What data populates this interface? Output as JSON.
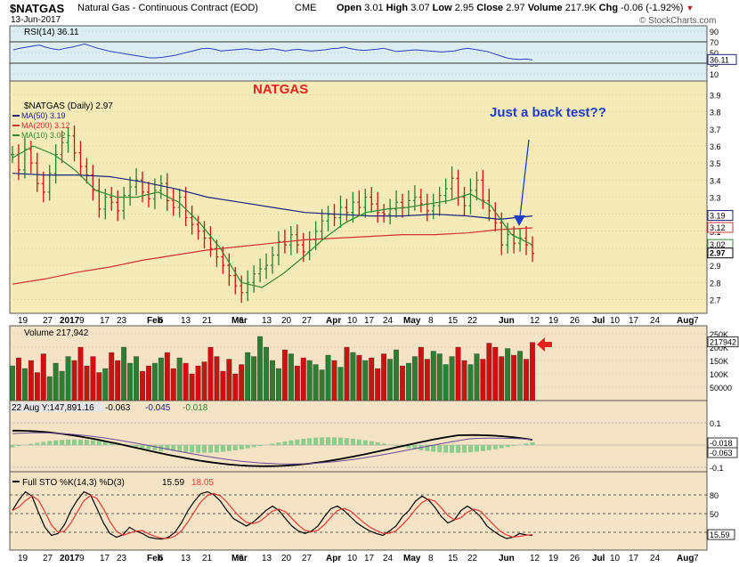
{
  "header": {
    "symbol": "$NATGAS",
    "name": "Natural Gas - Continuous Contract (EOD)",
    "exchange": "CME",
    "date": "13-Jun-2017",
    "open_label": "Open",
    "open": "3.01",
    "high_label": "High",
    "high": "3.07",
    "low_label": "Low",
    "low": "2.95",
    "close_label": "Close",
    "close": "2.97",
    "volume_label": "Volume",
    "volume": "217.9K",
    "chg_label": "Chg",
    "chg": "-0.06 (-1.92%)",
    "watermark": "© StockCharts.com"
  },
  "colors": {
    "price_bg": "#F5EBB8",
    "panel_bg": "#F5E3C6",
    "rsi_bg": "#DCEEF2",
    "up": "#2E7D32",
    "down": "#CC1111",
    "ma50": "#1A237E",
    "ma200": "#D32F2F",
    "ma10": "#2E8B2E",
    "annotation_red": "#E8201E",
    "annotation_blue": "#1E3CD2",
    "macd_hist": "#8FCB8F",
    "rsi_line": "#2A3FC0",
    "sto_fast": "#000000",
    "sto_slow": "#E53935"
  },
  "rsi": {
    "legend": "RSI(14) 36.11",
    "value": 36.11,
    "ticks": [
      "90",
      "70",
      "50",
      "30",
      "10"
    ],
    "current": "36.11",
    "values": [
      55,
      58,
      60,
      62,
      64,
      60,
      57,
      55,
      58,
      60,
      63,
      66,
      62,
      58,
      55,
      52,
      50,
      48,
      46,
      44,
      42,
      40,
      40,
      41,
      43,
      45,
      48,
      51,
      54,
      57,
      58,
      56,
      53,
      54,
      55,
      56,
      57,
      55,
      54,
      56,
      57,
      55,
      53,
      55,
      56,
      54,
      53,
      54,
      55,
      57,
      58,
      60,
      57,
      55,
      54,
      55,
      56,
      58,
      55,
      52,
      53,
      54,
      55,
      54,
      53,
      52,
      51,
      52,
      53,
      56,
      58,
      56,
      54,
      52,
      48,
      44,
      40,
      38,
      37,
      38,
      36
    ]
  },
  "annotations": {
    "natgas": "NATGAS",
    "back_test": "Just a back test??"
  },
  "legend": {
    "price": "$NATGAS (Daily) 2.97",
    "ma50": "MA(50) 3.19",
    "ma200": "MA(200) 3.12",
    "ma10": "MA(10) 3.02"
  },
  "price_axis": {
    "ticks": [
      "3.9",
      "3.8",
      "3.7",
      "3.6",
      "3.5",
      "3.4",
      "3.3",
      "3.2",
      "3.1",
      "3.0",
      "2.9",
      "2.8",
      "2.7"
    ],
    "badges": [
      "3.19",
      "3.12",
      "3.02",
      "2.97"
    ]
  },
  "x_axis": {
    "labels": [
      "19",
      "27",
      "2017",
      "9",
      "17",
      "23",
      "Feb",
      "6",
      "13",
      "21",
      "Mar",
      "6",
      "13",
      "20",
      "27",
      "Apr",
      "10",
      "17",
      "24",
      "May",
      "8",
      "15",
      "22",
      "Jun",
      "12",
      "19",
      "26",
      "Jul",
      "10",
      "17",
      "24",
      "Aug",
      "7"
    ]
  },
  "volume": {
    "legend": "Volume 217,942",
    "ticks": [
      "250K",
      "200K",
      "150K",
      "100K",
      "50000"
    ],
    "current": "217942"
  },
  "macd": {
    "legend_prefix": "22 Aug Y:147,891.16",
    "v1": "-0.063",
    "v2": "-0.045",
    "v3": "-0.018",
    "ticks": [
      "0.1",
      "-0.1"
    ],
    "badges": [
      "-0.018",
      "-0.063"
    ]
  },
  "sto": {
    "legend_prefix": "Full STO %K(14,3) %D(3)",
    "k": "15.59",
    "d": "18.05",
    "ticks": [
      "80",
      "50",
      "20"
    ],
    "current": "15.59",
    "values": [
      55,
      72,
      85,
      78,
      52,
      28,
      15,
      18,
      32,
      55,
      72,
      85,
      80,
      58,
      35,
      18,
      12,
      16,
      28,
      22,
      18,
      12,
      10,
      9,
      12,
      20,
      35,
      55,
      70,
      82,
      85,
      80,
      70,
      55,
      42,
      36,
      30,
      36,
      45,
      55,
      62,
      55,
      42,
      30,
      22,
      18,
      22,
      30,
      45,
      58,
      62,
      55,
      45,
      35,
      28,
      22,
      18,
      15,
      22,
      30,
      45,
      55,
      70,
      78,
      72,
      60,
      45,
      35,
      40,
      55,
      62,
      55,
      45,
      30,
      22,
      15,
      10,
      12,
      18,
      16,
      15
    ]
  },
  "chart_data": {
    "type": "line",
    "title": "$NATGAS Natural Gas - Continuous Contract (EOD)",
    "ylabel": "",
    "ylim": [
      2.65,
      3.95
    ],
    "series": [
      {
        "name": "$NATGAS (Daily) 2.97",
        "values": [
          3.55,
          3.46,
          3.58,
          3.5,
          3.38,
          3.33,
          3.44,
          3.55,
          3.62,
          3.66,
          3.56,
          3.48,
          3.43,
          3.34,
          3.23,
          3.3,
          3.27,
          3.22,
          3.31,
          3.36,
          3.4,
          3.33,
          3.29,
          3.34,
          3.38,
          3.28,
          3.24,
          3.3,
          3.18,
          3.14,
          3.1,
          3.06,
          3.0,
          2.95,
          2.9,
          2.84,
          2.78,
          2.74,
          2.8,
          2.85,
          2.88,
          2.9,
          2.96,
          3.04,
          3.02,
          3.08,
          3.02,
          2.98,
          3.05,
          3.1,
          3.16,
          3.2,
          3.18,
          3.24,
          3.21,
          3.27,
          3.24,
          3.3,
          3.26,
          3.21,
          3.2,
          3.23,
          3.27,
          3.24,
          3.28,
          3.3,
          3.26,
          3.22,
          3.25,
          3.31,
          3.35,
          3.41,
          3.3,
          3.25,
          3.34,
          3.4,
          3.28,
          3.22,
          3.15,
          3.02,
          3.08,
          3.03,
          3.06,
          3.02,
          2.97
        ]
      },
      {
        "name": "MA(50) 3.19",
        "values": [
          3.44,
          3.43,
          3.43,
          3.42,
          3.39,
          3.35,
          3.3,
          3.27,
          3.24,
          3.21,
          3.2,
          3.19,
          3.19,
          3.2,
          3.19,
          3.17,
          3.19
        ]
      },
      {
        "name": "MA(200) 3.12",
        "values": [
          2.79,
          2.82,
          2.86,
          2.89,
          2.93,
          2.96,
          2.99,
          3.01,
          3.03,
          3.05,
          3.06,
          3.07,
          3.08,
          3.08,
          3.09,
          3.11,
          3.12
        ]
      },
      {
        "name": "MA(10) 3.02",
        "values": [
          3.53,
          3.6,
          3.55,
          3.46,
          3.34,
          3.3,
          3.3,
          3.33,
          3.27,
          3.15,
          3.0,
          2.8,
          2.77,
          2.85,
          2.95,
          3.06,
          3.15,
          3.21,
          3.23,
          3.24,
          3.26,
          3.28,
          3.32,
          3.25,
          3.08,
          3.02
        ]
      }
    ],
    "volume": [
      130,
      160,
      120,
      150,
      105,
      175,
      90,
      140,
      110,
      165,
      150,
      200,
      130,
      165,
      105,
      120,
      180,
      150,
      200,
      140,
      165,
      110,
      130,
      140,
      160,
      180,
      120,
      160,
      140,
      100,
      130,
      145,
      200,
      165,
      110,
      155,
      100,
      135,
      180,
      165,
      240,
      200,
      150,
      120,
      190,
      175,
      130,
      160,
      150,
      135,
      115,
      170,
      150,
      125,
      200,
      180,
      170,
      150,
      160,
      120,
      175,
      155,
      190,
      130,
      140,
      165,
      200,
      155,
      185,
      175,
      135,
      165,
      200,
      150,
      135,
      175,
      155,
      215,
      200,
      165,
      195,
      170,
      185,
      155,
      218
    ]
  }
}
